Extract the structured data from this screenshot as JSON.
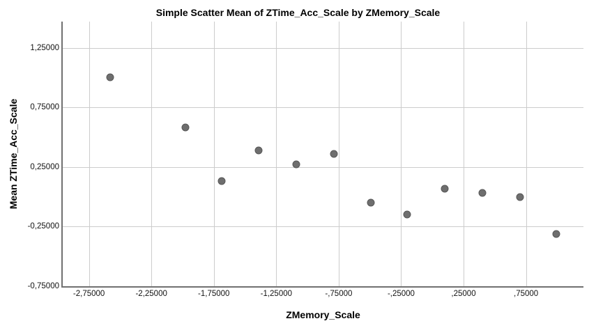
{
  "chart_data": {
    "type": "scatter",
    "title": "Simple Scatter Mean of ZTime_Acc_Scale by ZMemory_Scale",
    "xlabel": "ZMemory_Scale",
    "ylabel": "Mean ZTime_Acc_Scale",
    "xlim": [
      -2.96,
      1.21
    ],
    "ylim": [
      -0.75,
      1.47
    ],
    "grid": true,
    "legend": "none",
    "x_ticks": [
      {
        "value": -2.75,
        "label": "-2,75000"
      },
      {
        "value": -2.25,
        "label": "-2,25000"
      },
      {
        "value": -1.75,
        "label": "-1,75000"
      },
      {
        "value": -1.25,
        "label": "-1,25000"
      },
      {
        "value": -0.75,
        "label": "-,75000"
      },
      {
        "value": -0.25,
        "label": "-,25000"
      },
      {
        "value": 0.25,
        "label": ",25000"
      },
      {
        "value": 0.75,
        "label": ",75000"
      }
    ],
    "y_ticks": [
      {
        "value": 1.25,
        "label": "1,25000"
      },
      {
        "value": 0.75,
        "label": "0,75000"
      },
      {
        "value": 0.25,
        "label": "0,25000"
      },
      {
        "value": -0.25,
        "label": "-0,25000"
      },
      {
        "value": -0.75,
        "label": "-0,75000"
      }
    ],
    "points": [
      {
        "x": -2.58,
        "y": 1.0
      },
      {
        "x": -1.98,
        "y": 0.58
      },
      {
        "x": -1.69,
        "y": 0.13
      },
      {
        "x": -1.39,
        "y": 0.39
      },
      {
        "x": -1.09,
        "y": 0.27
      },
      {
        "x": -0.79,
        "y": 0.36
      },
      {
        "x": -0.49,
        "y": -0.05
      },
      {
        "x": -0.2,
        "y": -0.15
      },
      {
        "x": 0.1,
        "y": 0.07
      },
      {
        "x": 0.4,
        "y": 0.03
      },
      {
        "x": 0.7,
        "y": 0.0
      },
      {
        "x": 0.99,
        "y": -0.31
      }
    ],
    "colors": {
      "point_fill": "#6e6e6e",
      "point_border": "#575757",
      "gridline": "#cccccc",
      "axis": "#707070",
      "text": "#000000"
    }
  }
}
